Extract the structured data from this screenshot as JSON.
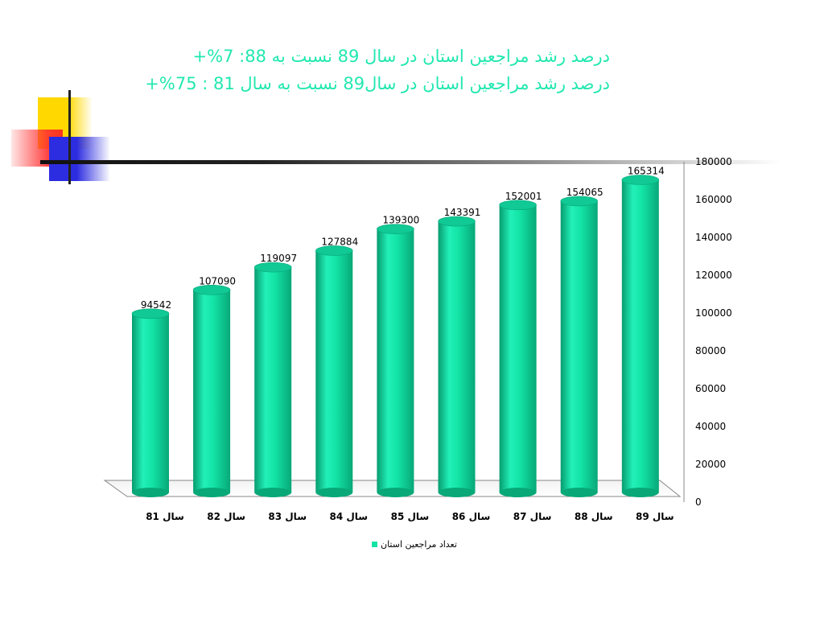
{
  "slide": {
    "title_line1": "درصد رشد مراجعین استان در سال 89 نسبت به 88: 7%+",
    "title_line2": "درصد رشد مراجعین استان در سال89 نسبت به سال 81 : 75%+"
  },
  "colors": {
    "title": "#22e8b0",
    "bar": "#13e3a6"
  },
  "chart_data": {
    "type": "bar",
    "categories": [
      "سال 81",
      "سال 82",
      "سال 83",
      "سال 84",
      "سال 85",
      "سال 86",
      "سال 87",
      "سال 88",
      "سال 89"
    ],
    "series": [
      {
        "name": "تعداد مراجعین استان",
        "values": [
          94542,
          107090,
          119097,
          127884,
          139300,
          143391,
          152001,
          154065,
          165314
        ]
      }
    ],
    "y_ticks": [
      "0",
      "20000",
      "40000",
      "60000",
      "80000",
      "100000",
      "120000",
      "140000",
      "160000",
      "180000"
    ],
    "ylim": [
      0,
      180000
    ],
    "y_axis_position": "right",
    "legend_position": "bottom",
    "grid": false,
    "style": "3d-cylinder"
  }
}
